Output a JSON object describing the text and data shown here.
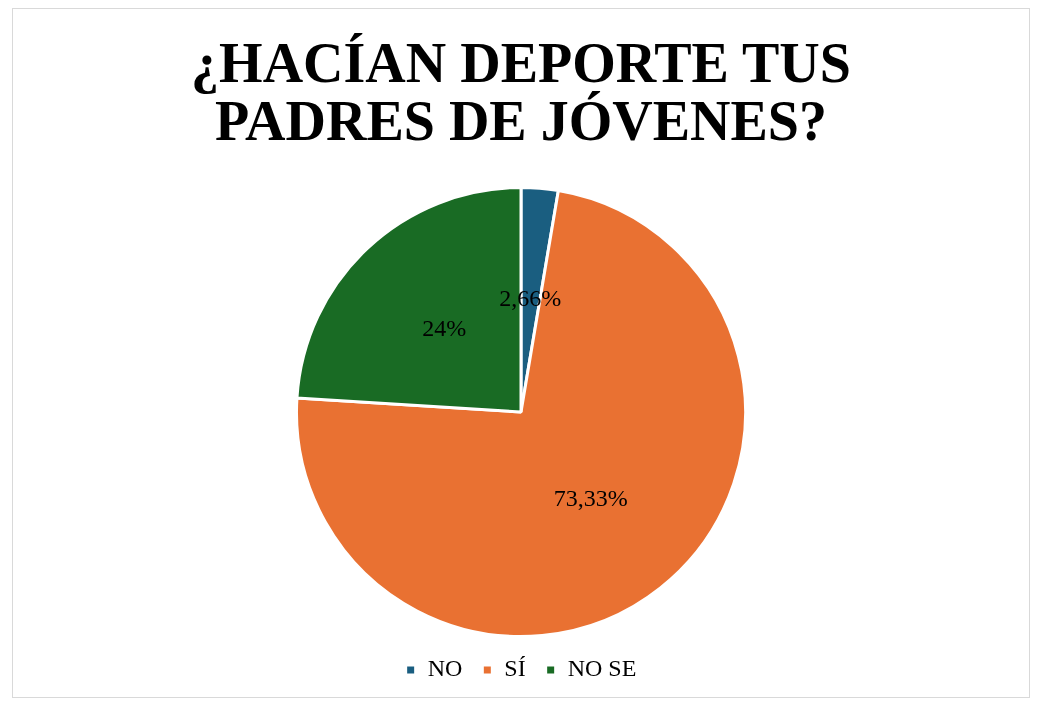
{
  "chart_data": {
    "type": "pie",
    "title": "¿HACÍAN DEPORTE TUS PADRES DE JÓVENES?",
    "categories": [
      "NO",
      "SÍ",
      "NO SE"
    ],
    "values": [
      2.66,
      73.33,
      24
    ],
    "colors": [
      "#1a5e80",
      "#e97132",
      "#196b24"
    ],
    "value_labels": [
      "2,66%",
      "73,33%",
      "24%"
    ],
    "legend": "bottom"
  }
}
